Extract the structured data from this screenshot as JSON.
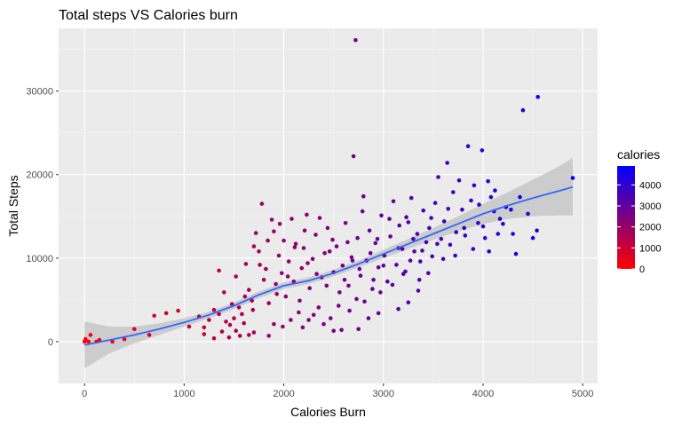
{
  "chart_data": {
    "type": "scatter",
    "title": "Total steps VS Calories burn",
    "xlabel": "Calories Burn",
    "ylabel": "Total Steps",
    "xlim": [
      -260,
      5150
    ],
    "ylim": [
      -5000,
      37500
    ],
    "x_ticks": [
      0,
      1000,
      2000,
      3000,
      4000,
      5000
    ],
    "x_tick_labels": [
      "0",
      "1000",
      "2000",
      "3000",
      "4000",
      "5000"
    ],
    "y_ticks": [
      0,
      10000,
      20000,
      30000
    ],
    "y_tick_labels": [
      "0",
      "10000",
      "20000",
      "30000"
    ],
    "grid": true,
    "panel_background": "#ebebeb",
    "color_scale": {
      "name": "calories",
      "low_color": "#ff0000",
      "high_color": "#0000ff",
      "min": 0,
      "max": 4900,
      "breaks": [
        0,
        1000,
        2000,
        3000,
        4000
      ],
      "break_labels": [
        "0",
        "1000",
        "2000",
        "3000",
        "4000"
      ],
      "legend_position": "right"
    },
    "points": [
      [
        0,
        0
      ],
      [
        10,
        300
      ],
      [
        40,
        0
      ],
      [
        60,
        800
      ],
      [
        120,
        0
      ],
      [
        150,
        200
      ],
      [
        280,
        0
      ],
      [
        400,
        300
      ],
      [
        500,
        1500
      ],
      [
        650,
        800
      ],
      [
        700,
        3100
      ],
      [
        820,
        3400
      ],
      [
        940,
        3700
      ],
      [
        1050,
        1800
      ],
      [
        1150,
        3000
      ],
      [
        1200,
        1700
      ],
      [
        1250,
        2600
      ],
      [
        1300,
        3800
      ],
      [
        1350,
        3300
      ],
      [
        1380,
        1200
      ],
      [
        1400,
        5900
      ],
      [
        1420,
        2400
      ],
      [
        1450,
        500
      ],
      [
        1480,
        4500
      ],
      [
        1500,
        2800
      ],
      [
        1520,
        7800
      ],
      [
        1550,
        4100
      ],
      [
        1580,
        3300
      ],
      [
        1600,
        2200
      ],
      [
        1620,
        9300
      ],
      [
        1650,
        6200
      ],
      [
        1680,
        4900
      ],
      [
        1700,
        11400
      ],
      [
        1720,
        13000
      ],
      [
        1750,
        10800
      ],
      [
        1780,
        16500
      ],
      [
        1800,
        7400
      ],
      [
        1820,
        8700
      ],
      [
        1850,
        4600
      ],
      [
        1880,
        14600
      ],
      [
        1900,
        13200
      ],
      [
        1920,
        6900
      ],
      [
        1950,
        10300
      ],
      [
        1980,
        8200
      ],
      [
        2000,
        12100
      ],
      [
        2020,
        5400
      ],
      [
        2050,
        9600
      ],
      [
        2080,
        14700
      ],
      [
        2100,
        7200
      ],
      [
        2120,
        11700
      ],
      [
        2150,
        3500
      ],
      [
        2180,
        8800
      ],
      [
        2200,
        11200
      ],
      [
        2230,
        15200
      ],
      [
        2260,
        6400
      ],
      [
        2290,
        9900
      ],
      [
        2320,
        12800
      ],
      [
        2350,
        4100
      ],
      [
        2380,
        7700
      ],
      [
        2410,
        10600
      ],
      [
        2440,
        13600
      ],
      [
        2470,
        2800
      ],
      [
        2500,
        8300
      ],
      [
        2530,
        11400
      ],
      [
        2560,
        5900
      ],
      [
        2590,
        9100
      ],
      [
        2620,
        14200
      ],
      [
        2650,
        6700
      ],
      [
        2680,
        10100
      ],
      [
        2700,
        22200
      ],
      [
        2720,
        36100
      ],
      [
        2740,
        12400
      ],
      [
        2770,
        7900
      ],
      [
        2800,
        17400
      ],
      [
        2830,
        9700
      ],
      [
        2860,
        13300
      ],
      [
        2890,
        6300
      ],
      [
        2920,
        11800
      ],
      [
        2950,
        8900
      ],
      [
        2980,
        15100
      ],
      [
        3010,
        10300
      ],
      [
        3040,
        7200
      ],
      [
        3070,
        12600
      ],
      [
        3100,
        16800
      ],
      [
        3130,
        9200
      ],
      [
        3160,
        13900
      ],
      [
        3190,
        11100
      ],
      [
        3220,
        8400
      ],
      [
        3250,
        14300
      ],
      [
        3280,
        17200
      ],
      [
        3310,
        10800
      ],
      [
        3340,
        12900
      ],
      [
        3370,
        9600
      ],
      [
        3400,
        15700
      ],
      [
        3430,
        11900
      ],
      [
        3460,
        13600
      ],
      [
        3490,
        10200
      ],
      [
        3520,
        16600
      ],
      [
        3550,
        19700
      ],
      [
        3580,
        12300
      ],
      [
        3610,
        14400
      ],
      [
        3640,
        21400
      ],
      [
        3670,
        11600
      ],
      [
        3700,
        17900
      ],
      [
        3730,
        13100
      ],
      [
        3760,
        19300
      ],
      [
        3790,
        15800
      ],
      [
        3820,
        12700
      ],
      [
        3850,
        23400
      ],
      [
        3880,
        16900
      ],
      [
        3910,
        18700
      ],
      [
        3950,
        14200
      ],
      [
        3990,
        22900
      ],
      [
        4020,
        12400
      ],
      [
        4050,
        19200
      ],
      [
        4080,
        17300
      ],
      [
        4110,
        15600
      ],
      [
        4150,
        12900
      ],
      [
        4200,
        14100
      ],
      [
        4280,
        15800
      ],
      [
        4330,
        10500
      ],
      [
        4400,
        27700
      ],
      [
        4450,
        15300
      ],
      [
        4540,
        13300
      ],
      [
        4550,
        29300
      ],
      [
        4900,
        19600
      ],
      [
        1350,
        8500
      ],
      [
        1460,
        2000
      ],
      [
        1560,
        700
      ],
      [
        1610,
        5400
      ],
      [
        1690,
        3800
      ],
      [
        1760,
        9200
      ],
      [
        1840,
        12100
      ],
      [
        1930,
        5700
      ],
      [
        1960,
        14100
      ],
      [
        2040,
        7800
      ],
      [
        2110,
        11300
      ],
      [
        2160,
        4900
      ],
      [
        2210,
        13300
      ],
      [
        2240,
        9400
      ],
      [
        2300,
        3200
      ],
      [
        2330,
        8100
      ],
      [
        2360,
        14800
      ],
      [
        2430,
        6700
      ],
      [
        2460,
        10800
      ],
      [
        2490,
        12200
      ],
      [
        2550,
        4300
      ],
      [
        2610,
        7400
      ],
      [
        2640,
        11900
      ],
      [
        2660,
        3700
      ],
      [
        2690,
        9700
      ],
      [
        2730,
        5100
      ],
      [
        2760,
        8700
      ],
      [
        2790,
        15600
      ],
      [
        2810,
        4800
      ],
      [
        2870,
        10600
      ],
      [
        2900,
        7400
      ],
      [
        2940,
        12300
      ],
      [
        2970,
        5900
      ],
      [
        3000,
        9100
      ],
      [
        3060,
        14700
      ],
      [
        3090,
        6800
      ],
      [
        3150,
        11200
      ],
      [
        3200,
        8100
      ],
      [
        3230,
        14900
      ],
      [
        3270,
        9700
      ],
      [
        3300,
        12300
      ],
      [
        3360,
        7400
      ],
      [
        3390,
        10900
      ],
      [
        3450,
        8200
      ],
      [
        3480,
        14800
      ],
      [
        3540,
        11700
      ],
      [
        3600,
        9900
      ],
      [
        3650,
        15900
      ],
      [
        3720,
        10300
      ],
      [
        3810,
        13600
      ],
      [
        3900,
        11100
      ],
      [
        3960,
        16400
      ],
      [
        4000,
        13800
      ],
      [
        4060,
        10800
      ],
      [
        4120,
        18100
      ],
      [
        4170,
        14700
      ],
      [
        4230,
        16100
      ],
      [
        4300,
        12900
      ],
      [
        4370,
        17300
      ],
      [
        4500,
        12400
      ],
      [
        1200,
        900
      ],
      [
        1300,
        400
      ],
      [
        1520,
        1300
      ],
      [
        1700,
        1100
      ],
      [
        1850,
        700
      ],
      [
        1990,
        1800
      ],
      [
        2070,
        2600
      ],
      [
        2190,
        1700
      ],
      [
        2400,
        2100
      ],
      [
        2580,
        1400
      ],
      [
        2750,
        1500
      ],
      [
        2950,
        3400
      ],
      [
        3150,
        3900
      ],
      [
        3350,
        6100
      ],
      [
        1900,
        2100
      ],
      [
        2250,
        2600
      ],
      [
        2850,
        2800
      ],
      [
        1650,
        800
      ],
      [
        3250,
        4700
      ],
      [
        2500,
        1300
      ]
    ],
    "smooth_line": {
      "method": "loess",
      "color": "#3366ff",
      "ribbon_color": "#c7c7c7",
      "x": [
        0,
        250,
        500,
        750,
        1000,
        1250,
        1500,
        1750,
        2000,
        2250,
        2500,
        2750,
        3000,
        3250,
        3500,
        3750,
        4000,
        4250,
        4500,
        4750,
        4900
      ],
      "y": [
        -400,
        200,
        800,
        1500,
        2300,
        3200,
        4300,
        5600,
        6700,
        7300,
        8200,
        9300,
        10500,
        11700,
        12900,
        14100,
        15300,
        16300,
        17200,
        18000,
        18500
      ],
      "lower": [
        -3200,
        -1400,
        -200,
        800,
        1800,
        2800,
        3900,
        5200,
        6300,
        6900,
        7800,
        8900,
        10000,
        11100,
        12200,
        13200,
        14100,
        14700,
        15000,
        15100,
        15100
      ],
      "upper": [
        2400,
        1800,
        1800,
        2200,
        2800,
        3600,
        4700,
        6000,
        7100,
        7700,
        8600,
        9700,
        11000,
        12300,
        13600,
        15000,
        16500,
        17900,
        19400,
        20900,
        22000
      ]
    }
  }
}
